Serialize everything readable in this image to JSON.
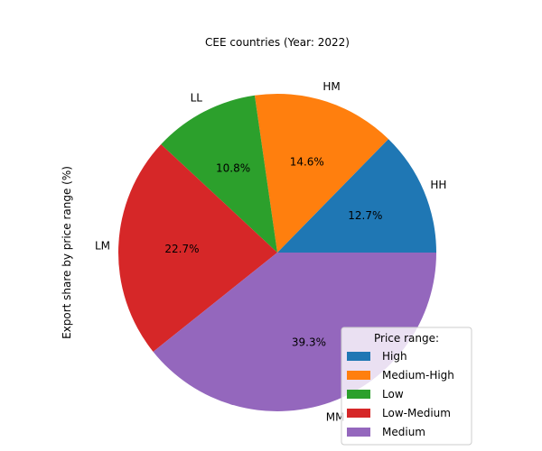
{
  "chart_data": {
    "type": "pie",
    "title": "CEE countries (Year: 2022)",
    "ylabel": "Export share by price range (%)",
    "slices": [
      {
        "label": "HH",
        "value": 12.7,
        "pct_label": "12.7%",
        "color": "#1f77b4"
      },
      {
        "label": "HM",
        "value": 14.6,
        "pct_label": "14.6%",
        "color": "#ff7f0e"
      },
      {
        "label": "LL",
        "value": 10.8,
        "pct_label": "10.8%",
        "color": "#2ca02c"
      },
      {
        "label": "LM",
        "value": 22.7,
        "pct_label": "22.7%",
        "color": "#d62728"
      },
      {
        "label": "MM",
        "value": 39.3,
        "pct_label": "39.3%",
        "color": "#9467bd"
      }
    ],
    "start_angle_deg": 0,
    "direction": "counterclockwise",
    "legend": {
      "title": "Price range:",
      "placement": "lower-right",
      "entries": [
        "High",
        "Medium-High",
        "Low",
        "Low-Medium",
        "Medium"
      ]
    }
  }
}
